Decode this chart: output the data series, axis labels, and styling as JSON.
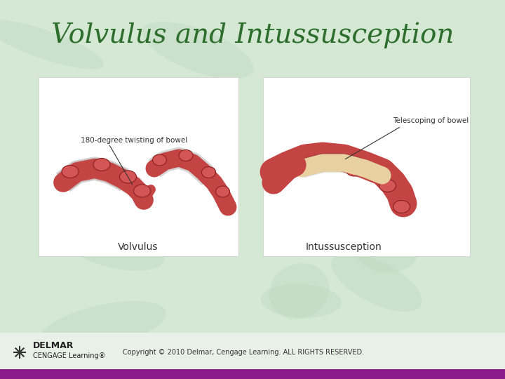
{
  "title": "Volvulus and Intussusception",
  "title_color": "#2d6e2d",
  "title_fontsize": 28,
  "bg_color_top": "#c8dfc8",
  "bg_color": "#d4e8d4",
  "bottom_bar_color": "#8b1a8b",
  "bottom_bar_height": 0.025,
  "footer_text": "Copyright © 2010 Delmar, Cengage Learning. ALL RIGHTS RESERVED.",
  "footer_delmar": "DELMAR",
  "footer_cengage": "CENGAGE Learning®",
  "left_image_label": "Volvulus",
  "right_image_label": "Intussusception",
  "left_annotation": "180-degree twisting of bowel",
  "right_annotation": "Telescoping of bowel",
  "fig_width": 7.2,
  "fig_height": 5.4
}
